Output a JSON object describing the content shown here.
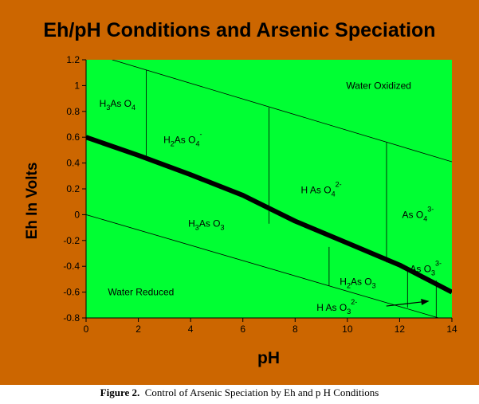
{
  "title": "Eh/pH  Conditions and Arsenic Speciation",
  "caption": {
    "label": "Figure 2.",
    "text": "Control of Arsenic Speciation by Eh and p H Conditions"
  },
  "colors": {
    "frame": "#cc6600",
    "plot_bg": "#00ff33",
    "caption_bg": "#ffffff",
    "stability_line": "#000000",
    "boundary_line": "#000000"
  },
  "chart_data": {
    "type": "line",
    "title": "Eh/pH  Conditions and Arsenic Speciation",
    "xlabel": "pH",
    "ylabel": "Eh In Volts",
    "xlim": [
      0,
      14
    ],
    "ylim": [
      -0.8,
      1.2
    ],
    "x_ticks": [
      0,
      2,
      4,
      6,
      8,
      10,
      12,
      14
    ],
    "y_ticks": [
      -0.8,
      -0.6,
      -0.4,
      -0.2,
      0,
      0.2,
      0.4,
      0.6,
      0.8,
      1,
      1.2
    ],
    "x_tick_labels": [
      "0",
      "2",
      "4",
      "6",
      "8",
      "10",
      "12",
      "14"
    ],
    "y_tick_labels": [
      "-0.8",
      "-0.6",
      "-0.4",
      "-0.2",
      "0",
      "0.2",
      "0.4",
      "0.6",
      "0.8",
      "1",
      "1.2"
    ],
    "grid": false,
    "legend": "none",
    "series": [
      {
        "id": "water-oxidized-boundary",
        "style": "thin",
        "x": [
          1,
          14
        ],
        "y": [
          1.2,
          0.41
        ]
      },
      {
        "id": "water-reduced-boundary",
        "style": "thin",
        "x": [
          0,
          14
        ],
        "y": [
          0.0,
          -0.83
        ]
      },
      {
        "id": "as-v-as-iii-boundary",
        "style": "thick",
        "x": [
          0,
          2,
          4,
          6,
          8,
          10,
          12,
          14
        ],
        "y": [
          0.6,
          0.46,
          0.31,
          0.15,
          -0.05,
          -0.22,
          -0.39,
          -0.6
        ]
      },
      {
        "id": "h3aso4-h2aso4-boundary",
        "style": "thin",
        "x": [
          2.3,
          2.3
        ],
        "y": [
          1.12,
          0.44
        ]
      },
      {
        "id": "h2aso4-haso4-boundary",
        "style": "thin",
        "x": [
          7,
          7
        ],
        "y": [
          0.83,
          -0.07
        ]
      },
      {
        "id": "haso4-aso4-boundary",
        "style": "thin",
        "x": [
          11.5,
          11.5
        ],
        "y": [
          0.56,
          -0.37
        ]
      },
      {
        "id": "h3aso3-h2aso3-boundary",
        "style": "thin",
        "x": [
          9.3,
          9.3
        ],
        "y": [
          -0.25,
          -0.55
        ]
      },
      {
        "id": "h2aso3-haso3-boundary",
        "style": "thin",
        "x": [
          12.3,
          12.3
        ],
        "y": [
          -0.41,
          -0.72
        ]
      },
      {
        "id": "haso3-aso3-boundary",
        "style": "thin",
        "x": [
          13.4,
          13.4
        ],
        "y": [
          -0.51,
          -0.8
        ]
      }
    ],
    "annotations": [
      {
        "id": "water-oxidized",
        "text": "Water Oxidized",
        "x": 11.2,
        "y": 1.0
      },
      {
        "id": "water-reduced",
        "text": "Water Reduced",
        "x": 2.1,
        "y": -0.6
      },
      {
        "id": "h3aso4",
        "base": [
          "H",
          "3",
          "As O",
          "4"
        ],
        "sup": "",
        "x": 1.2,
        "y": 0.86
      },
      {
        "id": "h2aso4",
        "base": [
          "H",
          "2",
          "As O",
          "4"
        ],
        "sup": "-",
        "x": 3.7,
        "y": 0.58
      },
      {
        "id": "haso4",
        "base": [
          "H As O",
          "4"
        ],
        "sup": "2-",
        "x": 9.0,
        "y": 0.19
      },
      {
        "id": "aso4",
        "base": [
          "As O",
          "4"
        ],
        "sup": "3-",
        "x": 12.7,
        "y": 0.0
      },
      {
        "id": "h3aso3",
        "base": [
          "H",
          "3",
          "As O",
          "3"
        ],
        "sup": "",
        "x": 4.6,
        "y": -0.07
      },
      {
        "id": "h2aso3",
        "base": [
          "H",
          "2",
          "As O",
          "3"
        ],
        "sup": "",
        "x": 10.4,
        "y": -0.52
      },
      {
        "id": "aso3",
        "base": [
          "As O",
          "3"
        ],
        "sup": "3-",
        "x": 13.0,
        "y": -0.42
      },
      {
        "id": "haso3",
        "base": [
          "H As O",
          "3"
        ],
        "sup": "2-",
        "x": 9.6,
        "y": -0.72,
        "arrow_to": [
          13.1,
          -0.67
        ]
      }
    ]
  }
}
